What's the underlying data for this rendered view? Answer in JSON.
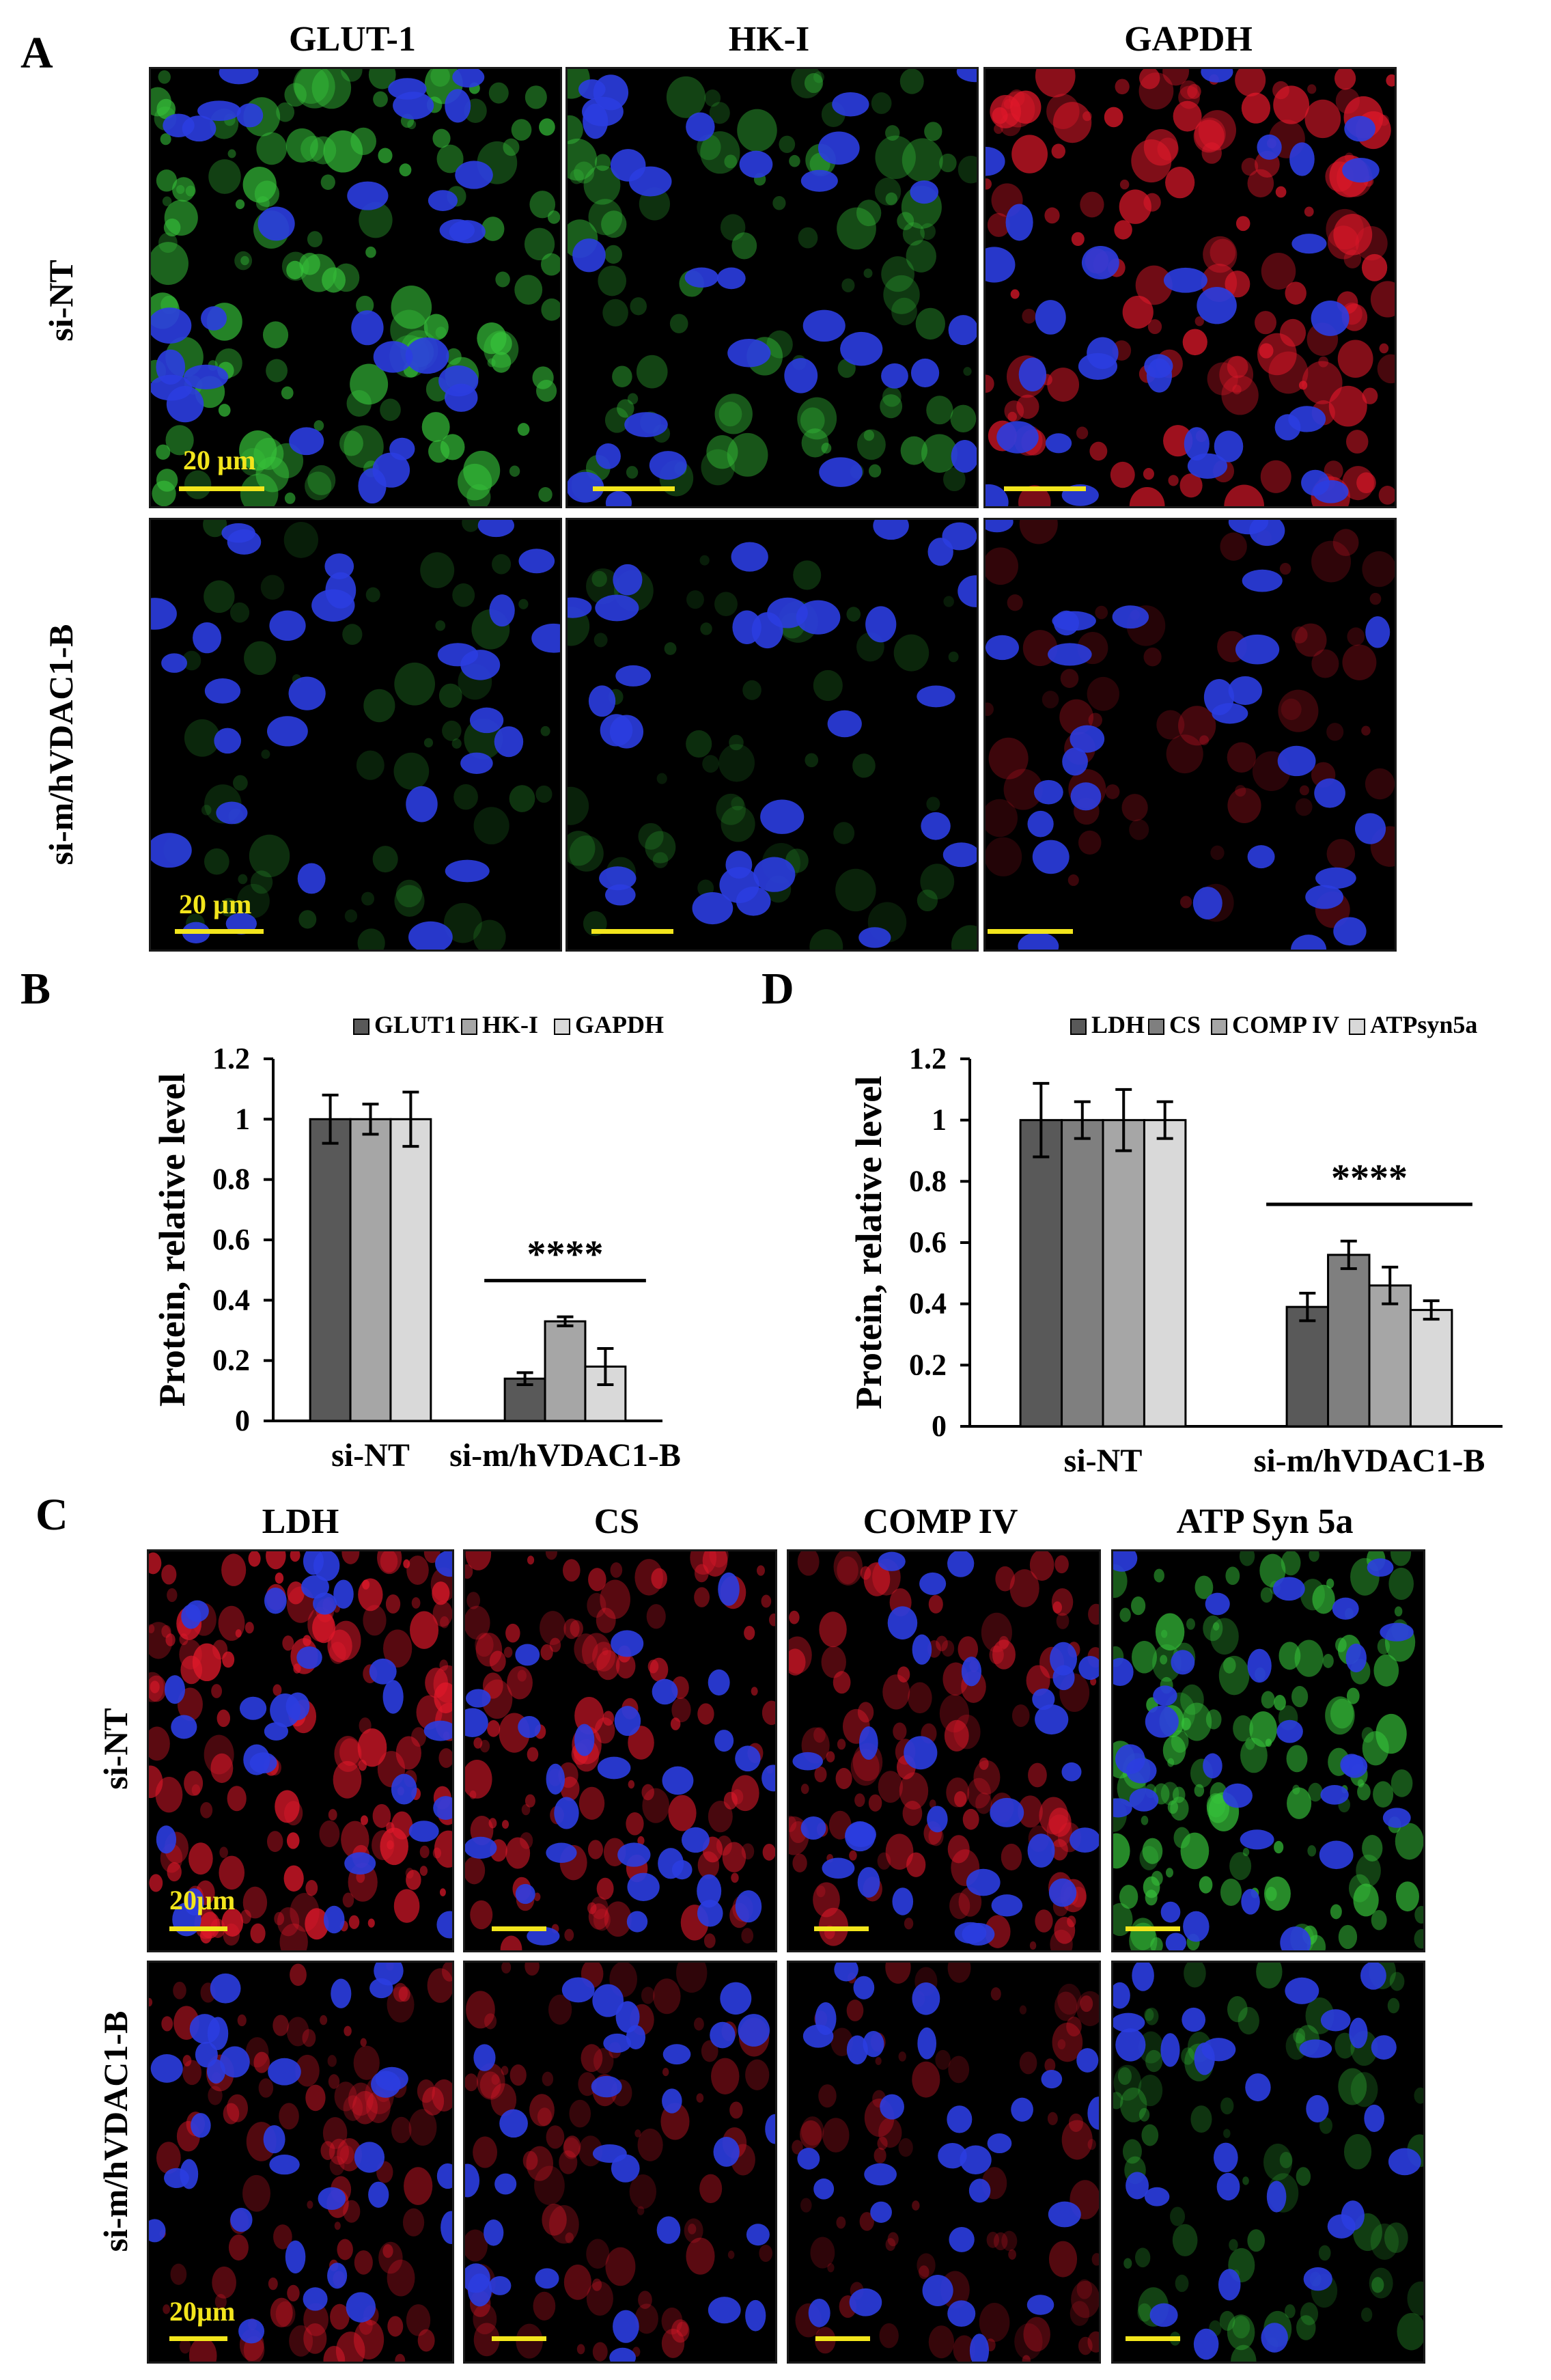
{
  "panel_a": {
    "letter": "A",
    "columns": [
      "GLUT-1",
      "HK-I",
      "GAPDH"
    ],
    "rows": [
      "si-NT",
      "si-m/hVDAC1-B"
    ],
    "scale_label": "20 µm",
    "tiles": [
      {
        "row": 0,
        "col": 0,
        "stain": "green",
        "intensity": 0.85
      },
      {
        "row": 0,
        "col": 1,
        "stain": "green",
        "intensity": 0.55
      },
      {
        "row": 0,
        "col": 2,
        "stain": "red",
        "intensity": 0.9
      },
      {
        "row": 1,
        "col": 0,
        "stain": "green",
        "intensity": 0.25
      },
      {
        "row": 1,
        "col": 1,
        "stain": "green",
        "intensity": 0.22
      },
      {
        "row": 1,
        "col": 2,
        "stain": "red",
        "intensity": 0.3
      }
    ]
  },
  "panel_c": {
    "letter": "C",
    "columns": [
      "LDH",
      "CS",
      "COMP IV",
      "ATP Syn 5a"
    ],
    "rows": [
      "si-NT",
      "si-m/hVDAC1-B"
    ],
    "scale_label": "20µm",
    "tiles": [
      {
        "row": 0,
        "col": 0,
        "stain": "red",
        "intensity": 0.95
      },
      {
        "row": 0,
        "col": 1,
        "stain": "red",
        "intensity": 0.75
      },
      {
        "row": 0,
        "col": 2,
        "stain": "red",
        "intensity": 0.7
      },
      {
        "row": 0,
        "col": 3,
        "stain": "green",
        "intensity": 0.85
      },
      {
        "row": 1,
        "col": 0,
        "stain": "red",
        "intensity": 0.6
      },
      {
        "row": 1,
        "col": 1,
        "stain": "red",
        "intensity": 0.45
      },
      {
        "row": 1,
        "col": 2,
        "stain": "red",
        "intensity": 0.4
      },
      {
        "row": 1,
        "col": 3,
        "stain": "green",
        "intensity": 0.4
      }
    ]
  },
  "colors": {
    "nucleus": "#2b3de0",
    "green_stain": "#36c23a",
    "red_stain": "#e0182a",
    "scale_bar": "#f2e51c",
    "bar_dark": "#595959",
    "bar_mid": "#a6a6a6",
    "bar_light": "#d9d9d9",
    "bar_darkgray": "#7f7f7f"
  },
  "chart_data": [
    {
      "panel": "B",
      "type": "bar",
      "ylabel": "Protein, relative level",
      "categories": [
        "si-NT",
        "si-m/hVDAC1-B"
      ],
      "ylim": [
        0,
        1.2
      ],
      "yticks": [
        "0",
        "0.2",
        "0.4",
        "0.6",
        "0.8",
        "1",
        "1.2"
      ],
      "legend_position": "top-right",
      "significance": "****",
      "series": [
        {
          "name": "GLUT1",
          "color": "#595959",
          "values": [
            1.0,
            0.14
          ],
          "errors": [
            0.08,
            0.02
          ]
        },
        {
          "name": "HK-I",
          "color": "#a6a6a6",
          "values": [
            1.0,
            0.33
          ],
          "errors": [
            0.05,
            0.015
          ]
        },
        {
          "name": "GAPDH",
          "color": "#d9d9d9",
          "values": [
            1.0,
            0.18
          ],
          "errors": [
            0.09,
            0.06
          ]
        }
      ]
    },
    {
      "panel": "D",
      "type": "bar",
      "ylabel": "Protein, relative level",
      "categories": [
        "si-NT",
        "si-m/hVDAC1-B"
      ],
      "ylim": [
        0,
        1.2
      ],
      "yticks": [
        "0",
        "0.2",
        "0.4",
        "0.6",
        "0.8",
        "1",
        "1.2"
      ],
      "legend_position": "top-right",
      "significance": "****",
      "series": [
        {
          "name": "LDH",
          "color": "#595959",
          "values": [
            1.0,
            0.39
          ],
          "errors": [
            0.12,
            0.045
          ]
        },
        {
          "name": "CS",
          "color": "#7f7f7f",
          "values": [
            1.0,
            0.56
          ],
          "errors": [
            0.06,
            0.045
          ]
        },
        {
          "name": "COMP IV",
          "color": "#a6a6a6",
          "values": [
            1.0,
            0.46
          ],
          "errors": [
            0.1,
            0.06
          ]
        },
        {
          "name": "ATPsyn5a",
          "color": "#d9d9d9",
          "values": [
            1.0,
            0.38
          ],
          "errors": [
            0.06,
            0.03
          ]
        }
      ]
    }
  ]
}
